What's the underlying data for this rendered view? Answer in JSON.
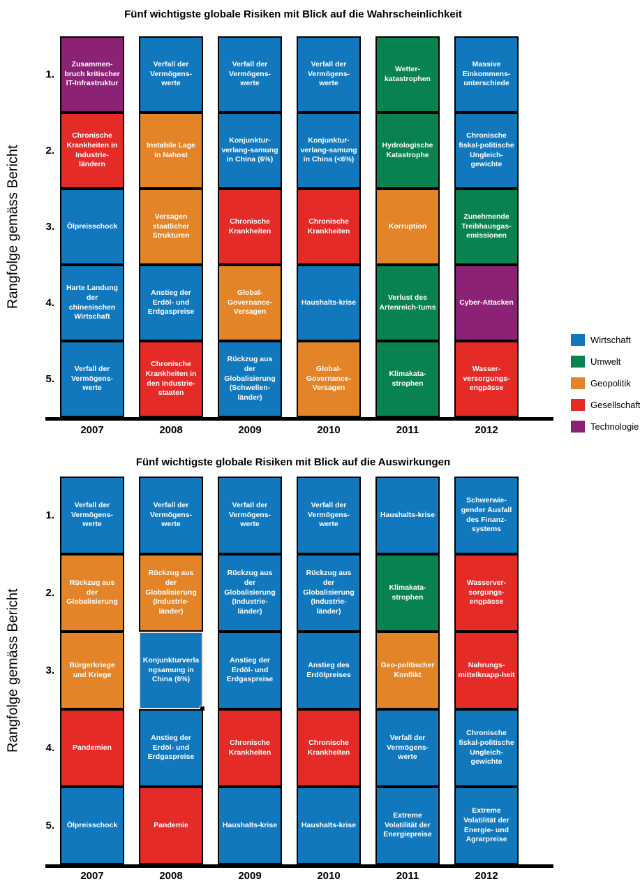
{
  "legend": {
    "items": [
      "Wirtschaft",
      "Umwelt",
      "Geopolitik",
      "Gesellschaft",
      "Technologie"
    ],
    "colors": {
      "Wirtschaft": "#1178BE",
      "Umwelt": "#08824E",
      "Geopolitik": "#E28427",
      "Gesellschaft": "#E42B28",
      "Technologie": "#8B2276"
    }
  },
  "ranks": [
    "1.",
    "2.",
    "3.",
    "4.",
    "5."
  ],
  "chart_data": [
    {
      "type": "table",
      "title": "Fünf wichtigste globale Risiken mit Blick auf die Wahrscheinlichkeit",
      "ylabel": "Rangfolge gemäss Bericht",
      "legend_position": "right",
      "row_labels": [
        "1.",
        "2.",
        "3.",
        "4.",
        "5."
      ],
      "columns": [
        {
          "year": "2007",
          "cells": [
            {
              "label": "Zusammen-bruch kritischer IT-Infrastruktur",
              "category": "Technologie"
            },
            {
              "label": "Chronische Krankheiten in Industrie-ländern",
              "category": "Gesellschaft"
            },
            {
              "label": "Ölpreisschock",
              "category": "Wirtschaft"
            },
            {
              "label": "Harte Landung der chinesischen Wirtschaft",
              "category": "Wirtschaft"
            },
            {
              "label": "Verfall der Vermögens-werte",
              "category": "Wirtschaft"
            }
          ]
        },
        {
          "year": "2008",
          "cells": [
            {
              "label": "Verfall der Vermögens-werte",
              "category": "Wirtschaft"
            },
            {
              "label": "Instabile Lage in Nahost",
              "category": "Geopolitik"
            },
            {
              "label": "Versagen staatlicher Strukturen",
              "category": "Geopolitik"
            },
            {
              "label": "Anstieg der Erdöl- und Erdgaspreise",
              "category": "Wirtschaft"
            },
            {
              "label": "Chronische Krankheiten in den Industrie-staaten",
              "category": "Gesellschaft"
            }
          ]
        },
        {
          "year": "2009",
          "cells": [
            {
              "label": "Verfall der Vermögens-werte",
              "category": "Wirtschaft"
            },
            {
              "label": "Konjunktur-verlang-samung in China (6%)",
              "category": "Wirtschaft"
            },
            {
              "label": "Chronische Krankheiten",
              "category": "Gesellschaft"
            },
            {
              "label": "Global-Governance-Versagen",
              "category": "Geopolitik"
            },
            {
              "label": "Rückzug aus der Globalisierung (Schwellen-länder)",
              "category": "Wirtschaft"
            }
          ]
        },
        {
          "year": "2010",
          "cells": [
            {
              "label": "Verfall der Vermögens-werte",
              "category": "Wirtschaft"
            },
            {
              "label": "Konjunktur-verlang-samung in China (<6%)",
              "category": "Wirtschaft"
            },
            {
              "label": "Chronische Krankheiten",
              "category": "Gesellschaft"
            },
            {
              "label": "Haushalts-krise",
              "category": "Wirtschaft"
            },
            {
              "label": "Global-Governance-Versagen",
              "category": "Geopolitik"
            }
          ]
        },
        {
          "year": "2011",
          "cells": [
            {
              "label": "Wetter-katastrophen",
              "category": "Umwelt"
            },
            {
              "label": "Hydrologische Katastrophe",
              "category": "Umwelt"
            },
            {
              "label": "Korruption",
              "category": "Geopolitik"
            },
            {
              "label": "Verlust des Artenreich-tums",
              "category": "Umwelt"
            },
            {
              "label": "Klimakata-strophen",
              "category": "Umwelt"
            }
          ]
        },
        {
          "year": "2012",
          "cells": [
            {
              "label": "Massive Einkommens-unterschiede",
              "category": "Wirtschaft"
            },
            {
              "label": "Chronische fiskal-politische Ungleich-gewichte",
              "category": "Wirtschaft"
            },
            {
              "label": "Zunehmende Treibhausgas-emissionen",
              "category": "Umwelt"
            },
            {
              "label": "Cyber-Attacken",
              "category": "Technologie"
            },
            {
              "label": "Wasser-versorgungs-engpässe",
              "category": "Gesellschaft"
            }
          ]
        }
      ]
    },
    {
      "type": "table",
      "title": "Fünf wichtigste globale Risiken mit Blick auf die Auswirkungen",
      "ylabel": "Rangfolge gemäss Bericht",
      "row_labels": [
        "1.",
        "2.",
        "3.",
        "4.",
        "5."
      ],
      "columns": [
        {
          "year": "2007",
          "cells": [
            {
              "label": "Verfall der Vermögens-werte",
              "category": "Wirtschaft"
            },
            {
              "label": "Rückzug aus der Globalisierung",
              "category": "Geopolitik"
            },
            {
              "label": "Bürgerkriege und Kriege",
              "category": "Geopolitik"
            },
            {
              "label": "Pandemien",
              "category": "Gesellschaft"
            },
            {
              "label": "Ölpreisschock",
              "category": "Wirtschaft"
            }
          ]
        },
        {
          "year": "2008",
          "cells": [
            {
              "label": "Verfall der Vermögens-werte",
              "category": "Wirtschaft"
            },
            {
              "label": "Rückzug aus der Globalisierung (Industrie-länder)",
              "category": "Geopolitik"
            },
            {
              "label": "Konjunkturverlangsamung in China (6%)",
              "category": "Wirtschaft",
              "selected": true
            },
            {
              "label": "Anstieg der Erdöl- und Erdgaspreise",
              "category": "Wirtschaft"
            },
            {
              "label": "Pandemie",
              "category": "Gesellschaft"
            }
          ]
        },
        {
          "year": "2009",
          "cells": [
            {
              "label": "Verfall der Vermögens-werte",
              "category": "Wirtschaft"
            },
            {
              "label": "Rückzug aus der Globalisierung (Industrie-länder)",
              "category": "Wirtschaft"
            },
            {
              "label": "Anstieg der Erdöl- und Erdgaspreise",
              "category": "Wirtschaft"
            },
            {
              "label": "Chronische Krankheiten",
              "category": "Gesellschaft"
            },
            {
              "label": "Haushalts-krise",
              "category": "Wirtschaft"
            }
          ]
        },
        {
          "year": "2010",
          "cells": [
            {
              "label": "Verfall der Vermögens-werte",
              "category": "Wirtschaft"
            },
            {
              "label": "Rückzug aus der Globalisierung (Industrie-länder)",
              "category": "Wirtschaft"
            },
            {
              "label": "Anstieg des Erdölpreises",
              "category": "Wirtschaft"
            },
            {
              "label": "Chronische Krankheiten",
              "category": "Gesellschaft"
            },
            {
              "label": "Haushalts-krise",
              "category": "Wirtschaft"
            }
          ]
        },
        {
          "year": "2011",
          "cells": [
            {
              "label": "Haushalts-krise",
              "category": "Wirtschaft"
            },
            {
              "label": "Klimakata-strophen",
              "category": "Umwelt"
            },
            {
              "label": "Geo-politischer Konflikt",
              "category": "Geopolitik"
            },
            {
              "label": "Verfall der Vermögens-werte",
              "category": "Wirtschaft"
            },
            {
              "label": "Extreme Volatilität der Energiepreise",
              "category": "Wirtschaft"
            }
          ]
        },
        {
          "year": "2012",
          "cells": [
            {
              "label": "Schwerwie-gender Ausfall des Finanz-systems",
              "category": "Wirtschaft"
            },
            {
              "label": "Wasserver-sorgungs-engpässe",
              "category": "Gesellschaft"
            },
            {
              "label": "Nahrungs-mittelknapp-heit",
              "category": "Gesellschaft"
            },
            {
              "label": "Chronische fiskal-politische Ungleich-gewichte",
              "category": "Wirtschaft"
            },
            {
              "label": "Extreme Volatilität der Energie- und Agrarpreise",
              "category": "Wirtschaft"
            }
          ]
        }
      ]
    }
  ]
}
